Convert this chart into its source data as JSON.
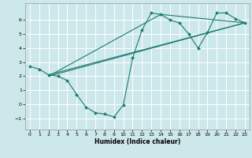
{
  "title": "",
  "xlabel": "Humidex (Indice chaleur)",
  "xlim": [
    -0.5,
    23.5
  ],
  "ylim": [
    -1.8,
    7.2
  ],
  "xticks": [
    0,
    1,
    2,
    3,
    4,
    5,
    6,
    7,
    8,
    9,
    10,
    11,
    12,
    13,
    14,
    15,
    16,
    17,
    18,
    19,
    20,
    21,
    22,
    23
  ],
  "yticks": [
    -1,
    0,
    1,
    2,
    3,
    4,
    5,
    6
  ],
  "background_color": "#cde8ea",
  "grid_color": "#ffffff",
  "line_color": "#1a7a6e",
  "line1_x": [
    0,
    1,
    2,
    3,
    4,
    5,
    6,
    7,
    8,
    9,
    10,
    11,
    12,
    13,
    14,
    15,
    16,
    17,
    18,
    19,
    20,
    21,
    22,
    23
  ],
  "line1_y": [
    2.7,
    2.5,
    2.1,
    2.0,
    1.7,
    0.7,
    -0.2,
    -0.6,
    -0.7,
    -0.9,
    -0.05,
    3.3,
    5.3,
    6.5,
    6.4,
    6.0,
    5.8,
    5.0,
    4.0,
    5.1,
    6.5,
    6.5,
    6.1,
    5.8
  ],
  "line2_x": [
    2,
    23
  ],
  "line2_y": [
    2.1,
    5.8
  ],
  "line3_x": [
    2,
    23
  ],
  "line3_y": [
    2.0,
    5.8
  ],
  "line4_x": [
    2,
    14,
    23
  ],
  "line4_y": [
    2.0,
    6.4,
    5.8
  ],
  "figsize": [
    3.2,
    2.0
  ],
  "dpi": 100
}
